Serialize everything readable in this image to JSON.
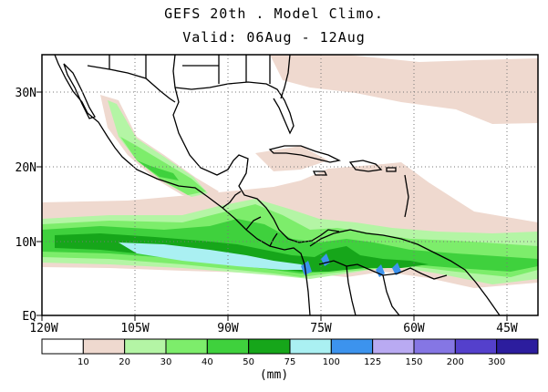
{
  "title": {
    "line1": "GEFS 20th . Model Climo.",
    "line2": "Valid: 06Aug - 12Aug"
  },
  "axes": {
    "lat_labels": [
      "30N",
      "20N",
      "10N",
      "EQ"
    ],
    "lon_labels": [
      "120W",
      "105W",
      "90W",
      "75W",
      "60W",
      "45W"
    ]
  },
  "colorbar": {
    "unit": "(mm)",
    "ticks": [
      "10",
      "20",
      "30",
      "40",
      "50",
      "75",
      "100",
      "125",
      "150",
      "200",
      "300"
    ],
    "colors": [
      "#ffffff",
      "#efd9cf",
      "#b4f5a5",
      "#7ded6b",
      "#3fd13d",
      "#16a61a",
      "#aaf0f2",
      "#3c93ee",
      "#b9aaf2",
      "#8576e4",
      "#5440cc",
      "#2c1d9e"
    ]
  }
}
